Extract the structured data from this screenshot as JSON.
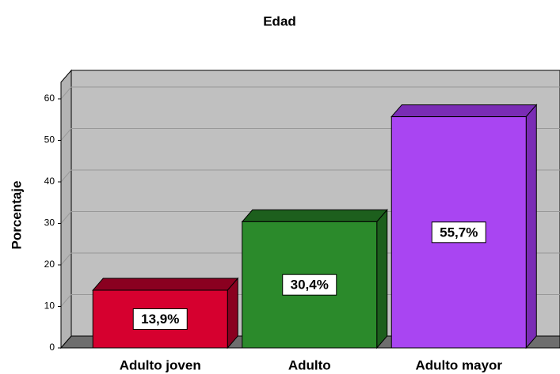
{
  "chart_data": {
    "type": "bar3d",
    "title": "Edad",
    "y_label": "Porcentaje",
    "categories": [
      "Adulto joven",
      "Adulto",
      "Adulto mayor"
    ],
    "values": [
      13.9,
      30.4,
      55.7
    ],
    "value_labels": [
      "13,9%",
      "30,4%",
      "55,7%"
    ],
    "colors": [
      "#d6002f",
      "#2b8a2b",
      "#a945f2"
    ],
    "top_colors": [
      "#8a0020",
      "#1d5f1d",
      "#7a2cb5"
    ],
    "ylim": [
      0,
      64
    ],
    "yticks": [
      0,
      10,
      20,
      30,
      40,
      50,
      60
    ],
    "grid": true
  }
}
